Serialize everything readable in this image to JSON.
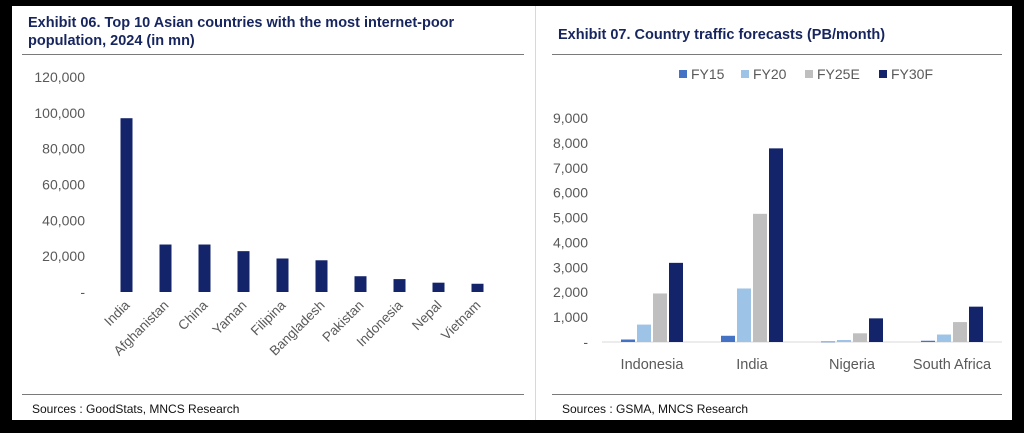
{
  "colors": {
    "title": "#17255f",
    "bar_primary": "#13246a",
    "fy15": "#4472c4",
    "fy20": "#9dc3e6",
    "fy25e": "#bfbfbf",
    "fy30f": "#13246a"
  },
  "left": {
    "title": "Exhibit 06. Top 10 Asian countries with the most internet-poor population, 2024 (in mn)",
    "source": "Sources : GoodStats, MNCS Research"
  },
  "right": {
    "title": "Exhibit 07. Country traffic forecasts (PB/month)",
    "source": "Sources : GSMA, MNCS Research"
  },
  "chart_data": [
    {
      "type": "bar",
      "title": "Exhibit 06. Top 10 Asian countries with the most internet-poor population, 2024 (in mn)",
      "categories": [
        "India",
        "Afghanistan",
        "China",
        "Yaman",
        "Filipina",
        "Bangladesh",
        "Pakistan",
        "Indonesia",
        "Nepal",
        "Vietnam"
      ],
      "values": [
        97000,
        26500,
        26500,
        22800,
        18700,
        17700,
        8800,
        7200,
        5200,
        4600
      ],
      "ylim": [
        0,
        120000
      ],
      "yticks": [
        "-",
        "20,000",
        "40,000",
        "60,000",
        "80,000",
        "100,000",
        "120,000"
      ],
      "grid": false,
      "legend": "none"
    },
    {
      "type": "bar",
      "title": "Exhibit 07. Country traffic forecasts (PB/month)",
      "categories": [
        "Indonesia",
        "India",
        "Nigeria",
        "South Africa"
      ],
      "series": [
        {
          "name": "FY15",
          "values": [
            100,
            250,
            20,
            50
          ]
        },
        {
          "name": "FY20",
          "values": [
            700,
            2150,
            80,
            300
          ]
        },
        {
          "name": "FY25E",
          "values": [
            1950,
            5150,
            350,
            800
          ]
        },
        {
          "name": "FY30F",
          "values": [
            3180,
            7780,
            950,
            1420
          ]
        }
      ],
      "ylim": [
        0,
        9000
      ],
      "yticks": [
        "-",
        "1,000",
        "2,000",
        "3,000",
        "4,000",
        "5,000",
        "6,000",
        "7,000",
        "8,000",
        "9,000"
      ],
      "grid": false,
      "legend": "top"
    }
  ]
}
